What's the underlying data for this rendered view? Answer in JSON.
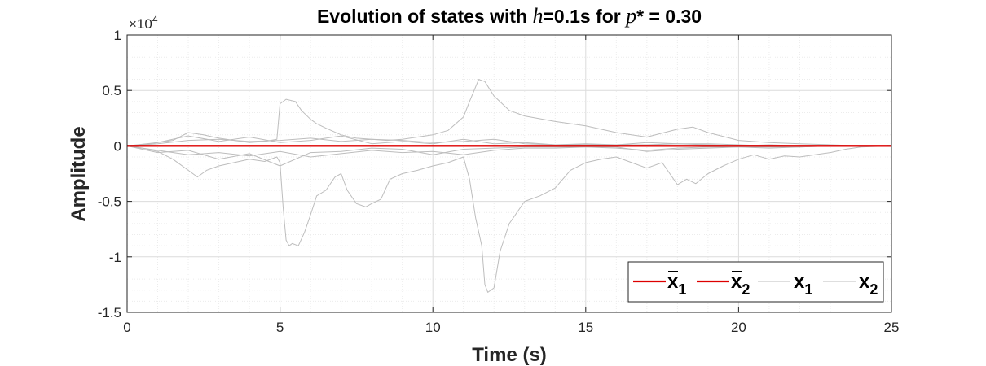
{
  "colors": {
    "red_series": "#dd0000",
    "gray_series": "#bdbdbd",
    "axis": "#262626",
    "grid_major": "#dcdcdc",
    "grid_minor": "#ececec"
  },
  "chart_data": {
    "type": "line",
    "title_parts": [
      "Evolution of states with ",
      "h",
      "=0.1s for ",
      "p",
      "* = 0.30"
    ],
    "xlabel": "Time (s)",
    "ylabel": "Amplitude",
    "y_exponent_label": "×10",
    "y_exponent_power": "4",
    "xlim": [
      0,
      25
    ],
    "ylim": [
      -1.5,
      1
    ],
    "y_multiplier": 10000,
    "x_ticks": [
      0,
      5,
      10,
      15,
      20,
      25
    ],
    "x_tick_labels": [
      "0",
      "5",
      "10",
      "15",
      "20",
      "25"
    ],
    "y_ticks": [
      -1.5,
      -1,
      -0.5,
      0,
      0.5,
      1
    ],
    "y_tick_labels": [
      "-1.5",
      "-1",
      "-0.5",
      "0",
      "0.5",
      "1"
    ],
    "grid": true,
    "minor_grid": true,
    "legend_position": "bottom-right",
    "legend": [
      {
        "base": "x",
        "sub": "1",
        "bar": true,
        "color_key": "red_series"
      },
      {
        "base": "x",
        "sub": "2",
        "bar": true,
        "color_key": "red_series"
      },
      {
        "base": "x",
        "sub": "1",
        "bar": false,
        "color_key": "gray_series"
      },
      {
        "base": "x",
        "sub": "2",
        "bar": false,
        "color_key": "gray_series"
      }
    ],
    "series": [
      {
        "color_key": "red_series",
        "x": [
          0,
          25
        ],
        "y": [
          0,
          0
        ]
      },
      {
        "color_key": "red_series",
        "x": [
          0,
          25
        ],
        "y": [
          0,
          0
        ]
      },
      {
        "color_key": "gray_series",
        "x": [
          0,
          0.5,
          1.0,
          1.5,
          2.0,
          2.5,
          3.0,
          3.5,
          4.0,
          4.5,
          4.9,
          5.0,
          5.2,
          5.5,
          5.7,
          6.0,
          6.2,
          6.5,
          7.0,
          7.3,
          7.5,
          8.0,
          8.5,
          9.0,
          9.5,
          10.0,
          10.5,
          11.0,
          11.2,
          11.5,
          11.7,
          12.0,
          12.5,
          13.0,
          14.0,
          15.0,
          16.0,
          17.0,
          18.0,
          18.5,
          19.0,
          20.0,
          21.0,
          22.0,
          23.0,
          24.0,
          25.0
        ],
        "y": [
          0,
          0.01,
          0.03,
          0.05,
          0.12,
          0.1,
          0.07,
          0.05,
          0.03,
          0.04,
          0.06,
          0.38,
          0.42,
          0.4,
          0.32,
          0.24,
          0.2,
          0.16,
          0.1,
          0.08,
          0.07,
          0.06,
          0.05,
          0.06,
          0.08,
          0.1,
          0.14,
          0.26,
          0.4,
          0.6,
          0.58,
          0.45,
          0.32,
          0.27,
          0.22,
          0.18,
          0.12,
          0.08,
          0.15,
          0.17,
          0.12,
          0.05,
          0.03,
          0.02,
          0.01,
          0.0,
          0.0
        ]
      },
      {
        "color_key": "gray_series",
        "x": [
          0,
          0.5,
          1.0,
          1.5,
          2.0,
          2.3,
          2.6,
          3.0,
          3.5,
          4.0,
          4.5,
          4.9,
          5.0,
          5.1,
          5.2,
          5.3,
          5.4,
          5.6,
          5.8,
          6.0,
          6.2,
          6.5,
          6.8,
          7.0,
          7.2,
          7.5,
          7.8,
          8.0,
          8.3,
          8.6,
          9.0,
          9.5,
          10.0,
          10.5,
          11.0,
          11.2,
          11.4,
          11.6,
          11.7,
          11.8,
          12.0,
          12.2,
          12.5,
          12.8,
          13.0,
          13.5,
          14.0,
          14.5,
          15.0,
          15.5,
          16.0,
          16.5,
          17.0,
          17.5,
          18.0,
          18.3,
          18.6,
          19.0,
          19.5,
          20.0,
          20.5,
          21.0,
          21.5,
          22.0,
          22.5,
          23.0,
          23.5,
          24.0,
          25.0
        ],
        "y": [
          0,
          -0.02,
          -0.05,
          -0.12,
          -0.22,
          -0.28,
          -0.22,
          -0.18,
          -0.15,
          -0.12,
          -0.14,
          -0.1,
          -0.15,
          -0.55,
          -0.85,
          -0.9,
          -0.88,
          -0.9,
          -0.78,
          -0.62,
          -0.45,
          -0.4,
          -0.28,
          -0.25,
          -0.4,
          -0.52,
          -0.55,
          -0.52,
          -0.48,
          -0.3,
          -0.25,
          -0.22,
          -0.18,
          -0.15,
          -0.1,
          -0.3,
          -0.65,
          -0.9,
          -1.25,
          -1.32,
          -1.28,
          -0.95,
          -0.7,
          -0.58,
          -0.5,
          -0.45,
          -0.38,
          -0.22,
          -0.15,
          -0.12,
          -0.1,
          -0.15,
          -0.2,
          -0.15,
          -0.35,
          -0.3,
          -0.34,
          -0.25,
          -0.18,
          -0.12,
          -0.08,
          -0.12,
          -0.09,
          -0.1,
          -0.08,
          -0.06,
          -0.03,
          -0.01,
          0.0
        ]
      },
      {
        "color_key": "gray_series",
        "x": [
          0,
          1,
          2,
          3,
          4,
          5,
          6,
          7,
          8,
          9,
          10,
          11,
          12,
          13,
          14,
          15,
          16,
          17,
          18,
          19,
          20,
          21,
          22,
          23,
          24,
          25
        ],
        "y": [
          0,
          0.02,
          0.05,
          0.06,
          0.04,
          0.05,
          0.07,
          0.04,
          0.06,
          0.05,
          0.03,
          0.04,
          0.06,
          0.02,
          0.01,
          0.01,
          0.01,
          0.01,
          0.02,
          0.02,
          0.01,
          0.0,
          0.0,
          0.0,
          0.0,
          0.0
        ]
      },
      {
        "color_key": "gray_series",
        "x": [
          0,
          1,
          2,
          3,
          4,
          5,
          6,
          7,
          8,
          9,
          10,
          11,
          12,
          13,
          14,
          15,
          16,
          17,
          18,
          19,
          20,
          21,
          22,
          23,
          24,
          25
        ],
        "y": [
          0,
          -0.04,
          -0.08,
          -0.06,
          -0.09,
          -0.05,
          -0.1,
          -0.07,
          -0.04,
          -0.06,
          -0.05,
          -0.08,
          -0.04,
          -0.02,
          -0.02,
          -0.01,
          -0.01,
          -0.05,
          -0.03,
          -0.02,
          -0.01,
          -0.01,
          -0.01,
          0.0,
          0.0,
          0.0
        ]
      },
      {
        "color_key": "gray_series",
        "x": [
          0,
          1,
          2,
          3,
          4,
          5,
          6,
          7,
          8,
          9,
          10,
          11,
          12,
          13,
          14,
          15,
          16,
          17,
          18,
          19,
          20,
          21,
          22,
          23,
          24,
          25
        ],
        "y": [
          0,
          0.03,
          0.09,
          0.04,
          0.08,
          0.03,
          0.05,
          0.09,
          0.02,
          0.04,
          0.02,
          0.06,
          0.02,
          0.03,
          0.01,
          0.02,
          0.01,
          0.03,
          0.02,
          0.01,
          0.0,
          0.01,
          0.0,
          0.0,
          0.0,
          0.0
        ]
      },
      {
        "color_key": "gray_series",
        "x": [
          0,
          1,
          2,
          3,
          4,
          5,
          6,
          7,
          8,
          9,
          10,
          11,
          12,
          13,
          14,
          15,
          16,
          17,
          18,
          19,
          20,
          21,
          22,
          23,
          24,
          25
        ],
        "y": [
          0,
          -0.06,
          -0.04,
          -0.12,
          -0.07,
          -0.18,
          -0.06,
          -0.05,
          -0.02,
          -0.03,
          -0.08,
          -0.03,
          -0.02,
          -0.01,
          -0.01,
          -0.01,
          -0.02,
          -0.04,
          -0.02,
          -0.01,
          -0.01,
          -0.02,
          -0.01,
          0.0,
          0.0,
          0.0
        ]
      }
    ]
  }
}
